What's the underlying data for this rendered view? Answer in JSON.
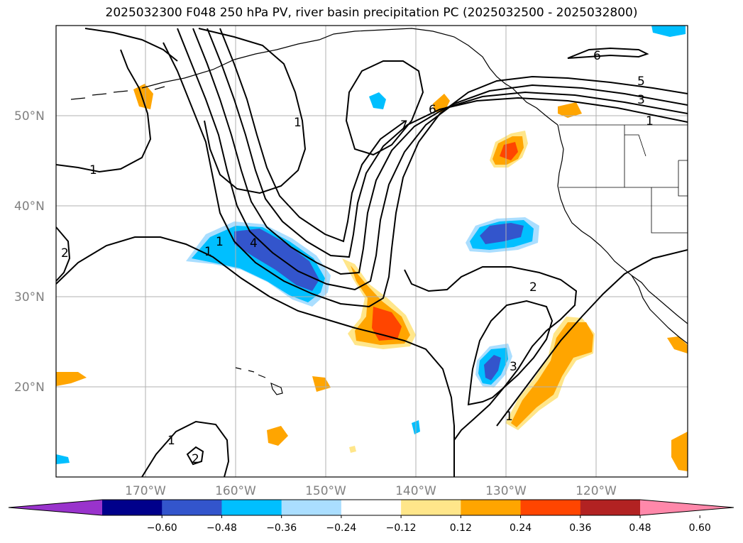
{
  "title": "2025032300 F048 250 hPa PV, river basin precipitation PC (2025032500 - 2025032800)",
  "latitude_labels": [
    "50°N",
    "40°N",
    "30°N",
    "20°N"
  ],
  "longitude_labels": [
    "170°W",
    "160°W",
    "150°W",
    "140°W",
    "130°W",
    "120°W"
  ],
  "colorbar": {
    "ticks": [
      "−0.60",
      "−0.48",
      "−0.36",
      "−0.24",
      "−0.12",
      "0.12",
      "0.24",
      "0.36",
      "0.48",
      "0.60"
    ],
    "colors": [
      "#9933cc",
      "#00008b",
      "#3355cc",
      "#00bfff",
      "#aadeff",
      "#ffffff",
      "#ffe68a",
      "#ffa500",
      "#ff4500",
      "#b22222",
      "#ff88aa"
    ]
  },
  "pv_contour_labels": [
    "1",
    "2",
    "1",
    "1",
    "2",
    "4",
    "1",
    "1",
    "7",
    "6",
    "5",
    "3",
    "1",
    "6",
    "2",
    "3",
    "1",
    "1",
    "2"
  ],
  "shading_colors": {
    "light_blue": "#aadeff",
    "blue": "#00bfff",
    "dark_blue": "#3355cc",
    "light_yellow": "#ffe68a",
    "orange": "#ffa500",
    "red_orange": "#ff4500"
  }
}
